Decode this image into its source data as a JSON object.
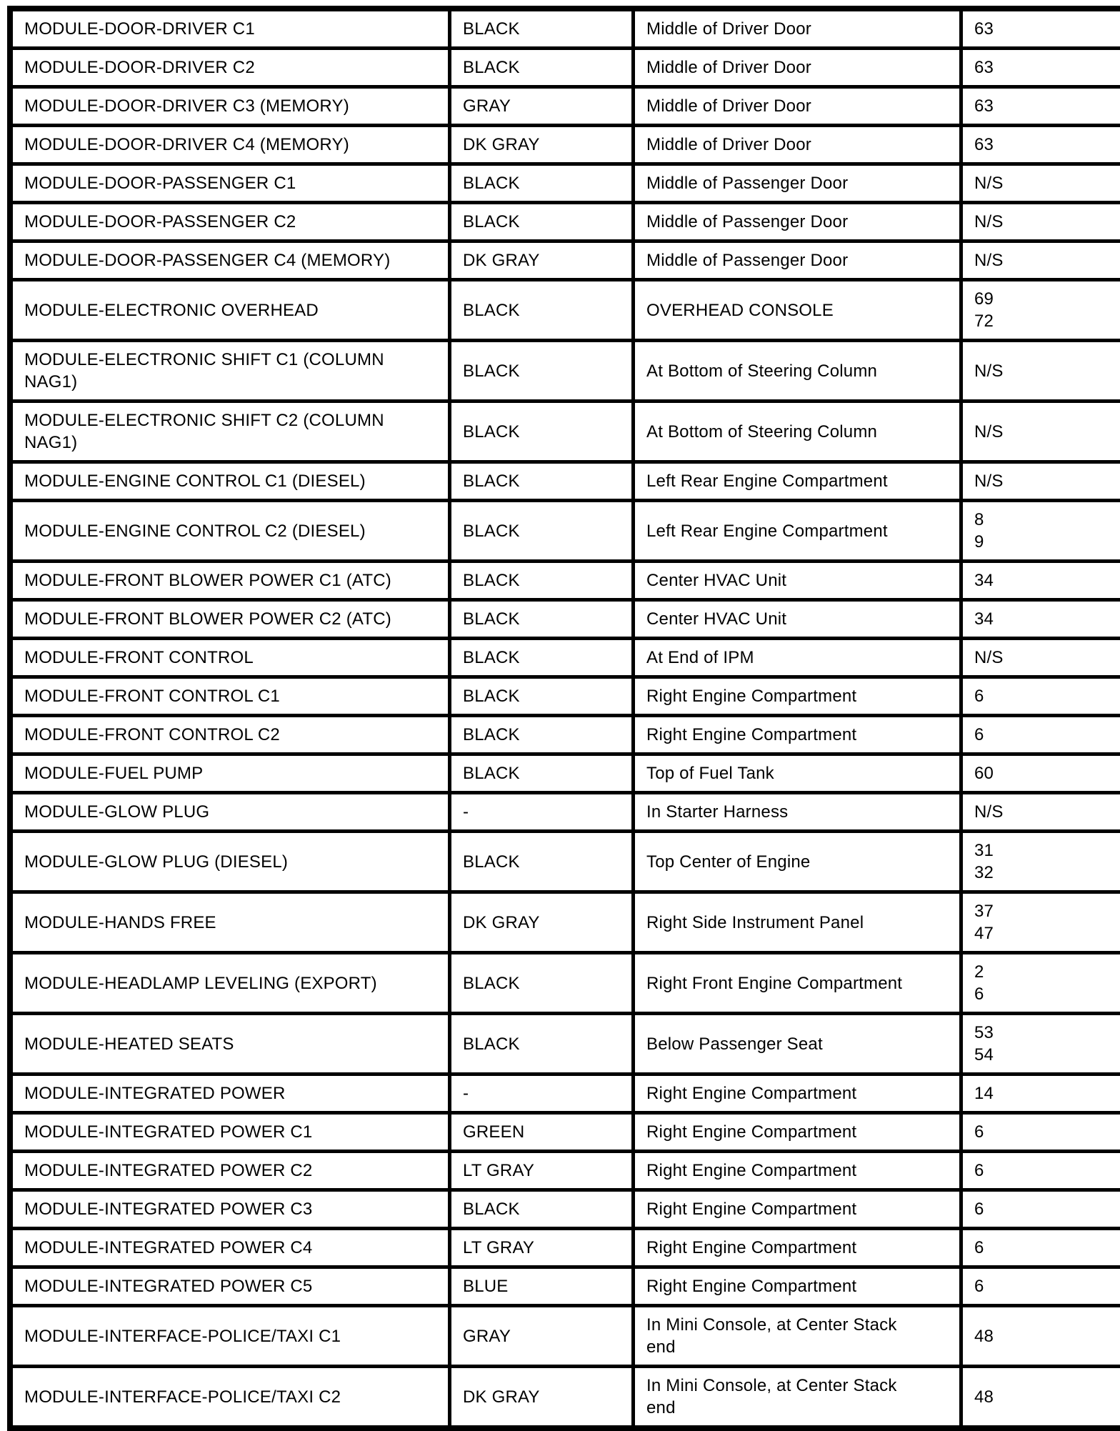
{
  "table": {
    "rows": [
      {
        "name": "MODULE-DOOR-DRIVER C1",
        "color": "BLACK",
        "location": "Middle of Driver Door",
        "figure": "63"
      },
      {
        "name": "MODULE-DOOR-DRIVER C2",
        "color": "BLACK",
        "location": "Middle of Driver Door",
        "figure": "63"
      },
      {
        "name": "MODULE-DOOR-DRIVER C3 (MEMORY)",
        "color": "GRAY",
        "location": "Middle of Driver Door",
        "figure": "63"
      },
      {
        "name": "MODULE-DOOR-DRIVER C4 (MEMORY)",
        "color": "DK GRAY",
        "location": "Middle of Driver Door",
        "figure": "63"
      },
      {
        "name": "MODULE-DOOR-PASSENGER C1",
        "color": "BLACK",
        "location": "Middle of Passenger Door",
        "figure": "N/S"
      },
      {
        "name": "MODULE-DOOR-PASSENGER C2",
        "color": "BLACK",
        "location": "Middle of Passenger Door",
        "figure": "N/S"
      },
      {
        "name": "MODULE-DOOR-PASSENGER C4 (MEMORY)",
        "color": "DK GRAY",
        "location": "Middle of Passenger Door",
        "figure": "N/S"
      },
      {
        "name": "MODULE-ELECTRONIC OVERHEAD",
        "color": "BLACK",
        "location": "OVERHEAD CONSOLE",
        "figure": "69\n72"
      },
      {
        "name": "MODULE-ELECTRONIC SHIFT C1 (COLUMN\nNAG1)",
        "color": "BLACK",
        "location": "At Bottom of Steering Column",
        "figure": "N/S"
      },
      {
        "name": "MODULE-ELECTRONIC SHIFT C2 (COLUMN\nNAG1)",
        "color": "BLACK",
        "location": "At Bottom of Steering Column",
        "figure": "N/S"
      },
      {
        "name": "MODULE-ENGINE CONTROL C1 (DIESEL)",
        "color": "BLACK",
        "location": "Left Rear Engine Compartment",
        "figure": "N/S"
      },
      {
        "name": "MODULE-ENGINE CONTROL C2 (DIESEL)",
        "color": "BLACK",
        "location": "Left Rear Engine Compartment",
        "figure": "8\n9"
      },
      {
        "name": "MODULE-FRONT BLOWER POWER C1 (ATC)",
        "color": "BLACK",
        "location": "Center HVAC Unit",
        "figure": "34"
      },
      {
        "name": "MODULE-FRONT BLOWER POWER C2 (ATC)",
        "color": "BLACK",
        "location": "Center HVAC Unit",
        "figure": "34"
      },
      {
        "name": "MODULE-FRONT CONTROL",
        "color": "BLACK",
        "location": "At End of IPM",
        "figure": "N/S"
      },
      {
        "name": "MODULE-FRONT CONTROL C1",
        "color": "BLACK",
        "location": "Right Engine Compartment",
        "figure": "6"
      },
      {
        "name": "MODULE-FRONT CONTROL C2",
        "color": "BLACK",
        "location": "Right Engine Compartment",
        "figure": "6"
      },
      {
        "name": "MODULE-FUEL PUMP",
        "color": "BLACK",
        "location": "Top of Fuel Tank",
        "figure": "60"
      },
      {
        "name": "MODULE-GLOW PLUG",
        "color": "-",
        "location": "In Starter Harness",
        "figure": "N/S"
      },
      {
        "name": "MODULE-GLOW PLUG (DIESEL)",
        "color": "BLACK",
        "location": "Top Center of Engine",
        "figure": "31\n32"
      },
      {
        "name": "MODULE-HANDS FREE",
        "color": "DK GRAY",
        "location": "Right Side Instrument Panel",
        "figure": "37\n47"
      },
      {
        "name": "MODULE-HEADLAMP LEVELING (EXPORT)",
        "color": "BLACK",
        "location": "Right Front Engine Compartment",
        "figure": "2\n6"
      },
      {
        "name": "MODULE-HEATED SEATS",
        "color": "BLACK",
        "location": "Below Passenger Seat",
        "figure": "53\n54"
      },
      {
        "name": "MODULE-INTEGRATED POWER",
        "color": "-",
        "location": "Right Engine Compartment",
        "figure": "14"
      },
      {
        "name": "MODULE-INTEGRATED POWER C1",
        "color": "GREEN",
        "location": "Right Engine Compartment",
        "figure": "6"
      },
      {
        "name": "MODULE-INTEGRATED POWER C2",
        "color": "LT GRAY",
        "location": "Right Engine Compartment",
        "figure": "6"
      },
      {
        "name": "MODULE-INTEGRATED POWER C3",
        "color": "BLACK",
        "location": "Right Engine Compartment",
        "figure": "6"
      },
      {
        "name": "MODULE-INTEGRATED POWER C4",
        "color": "LT GRAY",
        "location": "Right Engine Compartment",
        "figure": "6"
      },
      {
        "name": "MODULE-INTEGRATED POWER C5",
        "color": "BLUE",
        "location": "Right Engine Compartment",
        "figure": "6"
      },
      {
        "name": "MODULE-INTERFACE-POLICE/TAXI C1",
        "color": "GRAY",
        "location": "In Mini Console, at Center Stack\nend",
        "figure": "48"
      },
      {
        "name": "MODULE-INTERFACE-POLICE/TAXI C2",
        "color": "DK GRAY",
        "location": "In Mini Console, at Center Stack\nend",
        "figure": "48"
      }
    ]
  }
}
